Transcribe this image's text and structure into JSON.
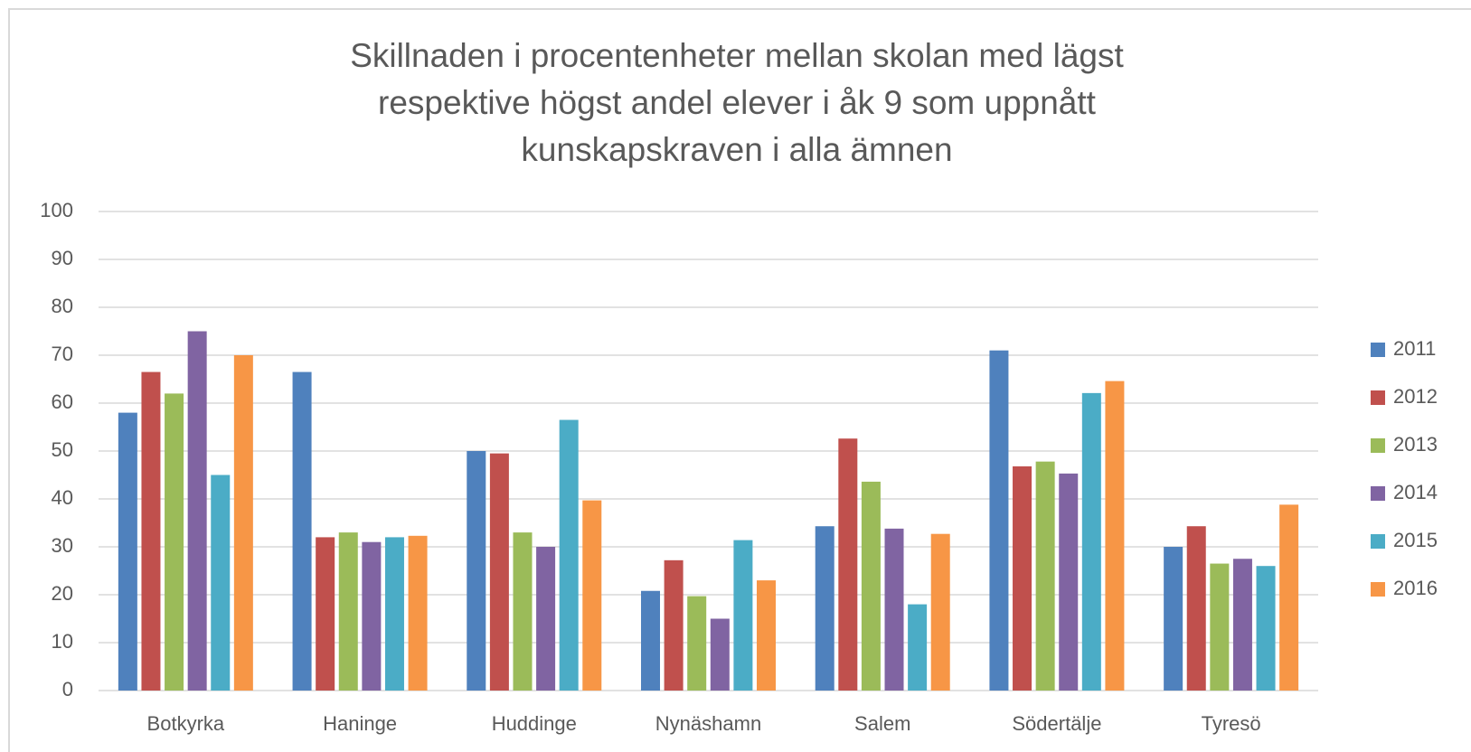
{
  "chart_data": {
    "type": "bar",
    "title": [
      "Skillnaden i procentenheter mellan skolan med lägst",
      "respektive högst andel elever i åk 9 som uppnått",
      "kunskapskraven i alla ämnen"
    ],
    "categories": [
      "Botkyrka",
      "Haninge",
      "Huddinge",
      "Nynäshamn",
      "Salem",
      "Södertälje",
      "Tyresö"
    ],
    "series": [
      {
        "name": "2011",
        "color": "#4f81bd",
        "values": [
          58,
          66.5,
          50,
          20.8,
          34.3,
          71,
          30
        ]
      },
      {
        "name": "2012",
        "color": "#c0504d",
        "values": [
          66.5,
          32,
          49.5,
          27.2,
          52.6,
          46.8,
          34.3
        ]
      },
      {
        "name": "2013",
        "color": "#9bbb59",
        "values": [
          62,
          33,
          33,
          19.7,
          43.6,
          47.8,
          26.5
        ]
      },
      {
        "name": "2014",
        "color": "#8064a2",
        "values": [
          75,
          31,
          30,
          15,
          33.8,
          45.3,
          27.5
        ]
      },
      {
        "name": "2015",
        "color": "#4bacc6",
        "values": [
          45,
          32,
          56.5,
          31.4,
          18,
          62.1,
          26
        ]
      },
      {
        "name": "2016",
        "color": "#f79646",
        "values": [
          70,
          32.3,
          39.7,
          23,
          32.7,
          64.6,
          38.8
        ]
      }
    ],
    "ylim": [
      0,
      100
    ],
    "yticks": [
      0,
      10,
      20,
      30,
      40,
      50,
      60,
      70,
      80,
      90,
      100
    ],
    "grid": true,
    "legend": "right"
  }
}
